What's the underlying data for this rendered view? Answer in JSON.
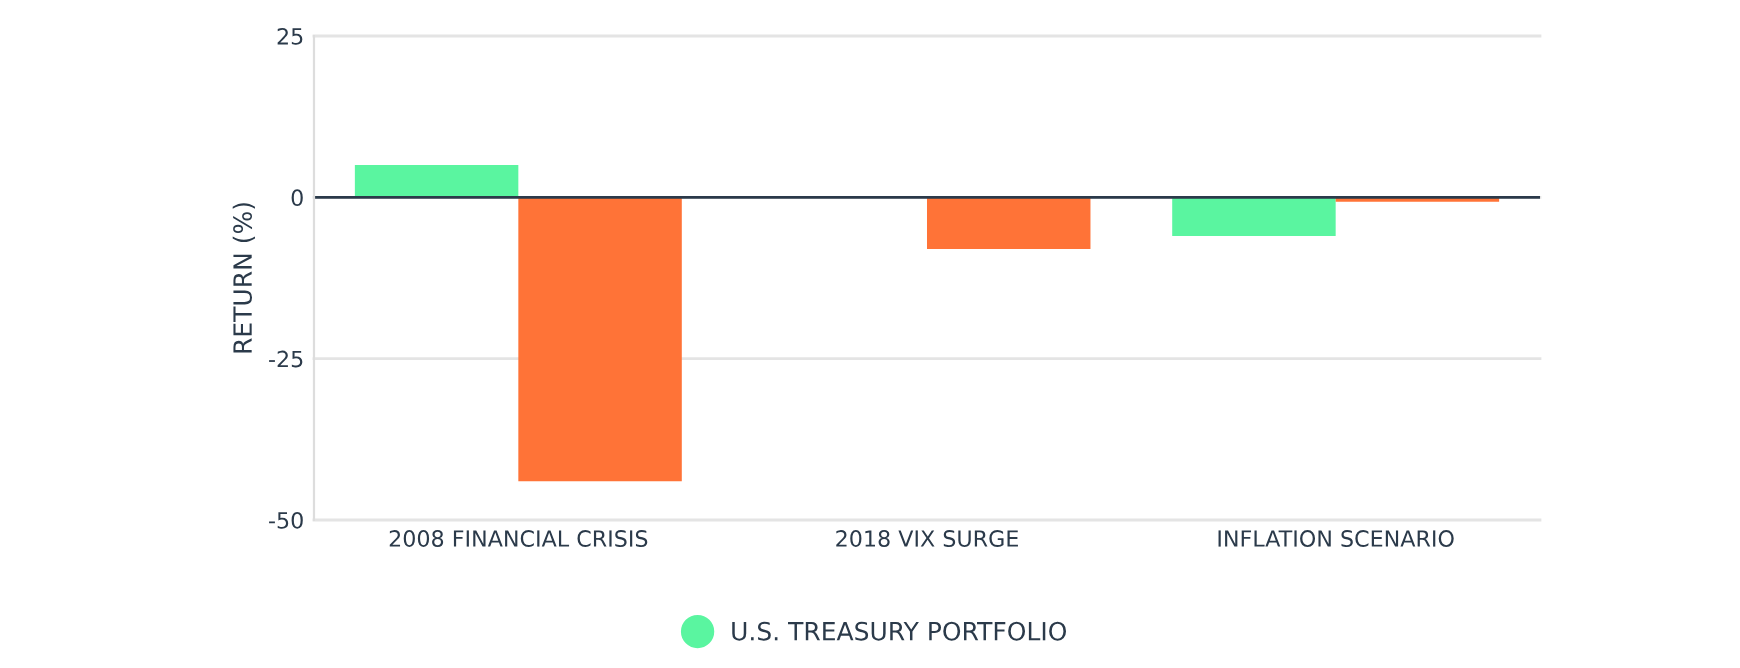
{
  "chart_data": {
    "type": "bar",
    "ylabel": "RETURN (%)",
    "categories": [
      "2008 FINANCIAL CRISIS",
      "2018 VIX SURGE",
      "INFLATION SCENARIO"
    ],
    "series": [
      {
        "name": "U.S. TREASURY PORTFOLIO",
        "color": "#5af5a0",
        "values": [
          5,
          0,
          -6
        ]
      },
      {
        "color": "#ff7337",
        "values": [
          -44,
          -8,
          -0.7
        ]
      }
    ],
    "ylim": [
      -50,
      25
    ],
    "yticks": [
      -50,
      -25,
      0,
      25
    ],
    "grid": "y",
    "legend": "bottom",
    "ref_lines": [
      {
        "axis": "y",
        "value": 0,
        "color": "#2b3a4a"
      }
    ]
  }
}
